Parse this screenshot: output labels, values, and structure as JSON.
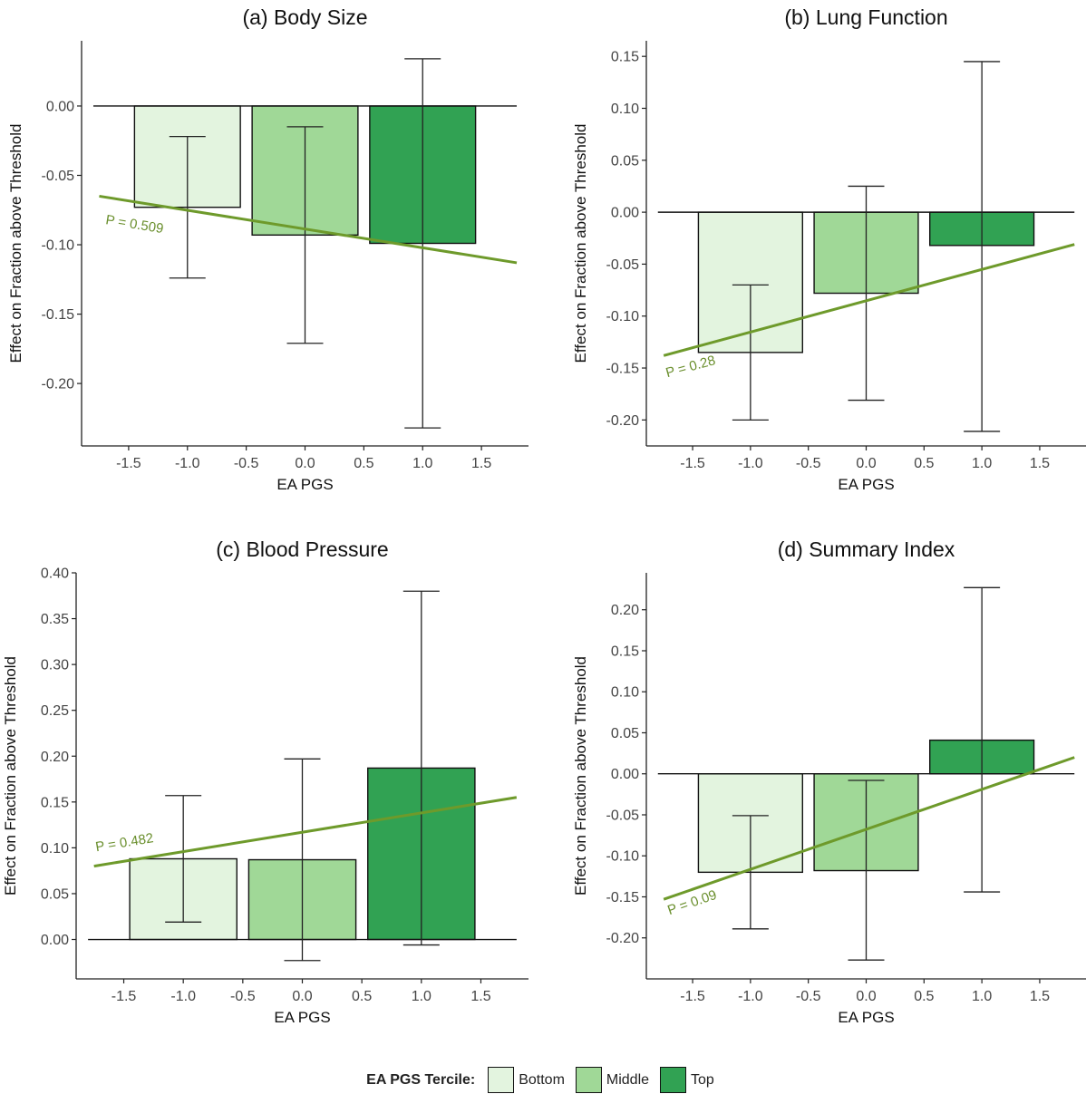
{
  "legend": {
    "title": "EA PGS Tercile:",
    "items": [
      {
        "label": "Bottom",
        "color": "#e3f4df"
      },
      {
        "label": "Middle",
        "color": "#a0d897"
      },
      {
        "label": "Top",
        "color": "#31a253"
      }
    ]
  },
  "colors": {
    "trend_line": "#6e9a2b",
    "p_label": "#6a8f2d",
    "axis": "#222222",
    "error_bar": "#222222"
  },
  "chart_data": [
    {
      "type": "bar",
      "title": "(a) Body Size",
      "xlabel": "EA PGS",
      "ylabel": "Effect on Fraction above Threshold",
      "xlim": [
        -1.9,
        1.9
      ],
      "ylim": [
        -0.245,
        0.047
      ],
      "xticks": [
        -1.5,
        -1.0,
        -0.5,
        0.0,
        0.5,
        1.0,
        1.5
      ],
      "xtick_labels": [
        "-1.5",
        "-1.0",
        "-0.5",
        "0.0",
        "0.5",
        "1.0",
        "1.5"
      ],
      "yticks": [
        0.0,
        -0.05,
        -0.1,
        -0.15,
        -0.2
      ],
      "ytick_labels": [
        "0.00",
        "-0.05",
        "-0.10",
        "-0.15",
        "-0.20"
      ],
      "bars": [
        {
          "tercile": "Bottom",
          "x": -1.0,
          "value": -0.073,
          "ci": [
            -0.124,
            -0.022
          ]
        },
        {
          "tercile": "Middle",
          "x": 0.0,
          "value": -0.093,
          "ci": [
            -0.171,
            -0.015
          ]
        },
        {
          "tercile": "Top",
          "x": 1.0,
          "value": -0.099,
          "ci": [
            -0.232,
            0.034
          ]
        }
      ],
      "trend": {
        "x": [
          -1.75,
          1.8
        ],
        "y": [
          -0.065,
          -0.113
        ]
      },
      "p_label": "P = 0.509",
      "p_label_at": {
        "x": -1.7,
        "y": -0.085
      }
    },
    {
      "type": "bar",
      "title": "(b) Lung Function",
      "xlabel": "EA PGS",
      "ylabel": "Effect on Fraction above Threshold",
      "xlim": [
        -1.9,
        1.9
      ],
      "ylim": [
        -0.225,
        0.165
      ],
      "xticks": [
        -1.5,
        -1.0,
        -0.5,
        0.0,
        0.5,
        1.0,
        1.5
      ],
      "xtick_labels": [
        "-1.5",
        "-1.0",
        "-0.5",
        "0.0",
        "0.5",
        "1.0",
        "1.5"
      ],
      "yticks": [
        0.15,
        0.1,
        0.05,
        0.0,
        -0.05,
        -0.1,
        -0.15,
        -0.2
      ],
      "ytick_labels": [
        "0.15",
        "0.10",
        "0.05",
        "0.00",
        "-0.05",
        "-0.10",
        "-0.15",
        "-0.20"
      ],
      "bars": [
        {
          "tercile": "Bottom",
          "x": -1.0,
          "value": -0.135,
          "ci": [
            -0.2,
            -0.07
          ]
        },
        {
          "tercile": "Middle",
          "x": 0.0,
          "value": -0.078,
          "ci": [
            -0.181,
            0.025
          ]
        },
        {
          "tercile": "Top",
          "x": 1.0,
          "value": -0.032,
          "ci": [
            -0.211,
            0.145
          ]
        }
      ],
      "trend": {
        "x": [
          -1.75,
          1.8
        ],
        "y": [
          -0.138,
          -0.031
        ]
      },
      "p_label": "P = 0.28",
      "p_label_at": {
        "x": -1.72,
        "y": -0.159
      }
    },
    {
      "type": "bar",
      "title": "(c) Blood Pressure",
      "xlabel": "EA PGS",
      "ylabel": "Effect on Fraction above Threshold",
      "xlim": [
        -1.9,
        1.9
      ],
      "ylim": [
        -0.043,
        0.4
      ],
      "xticks": [
        -1.5,
        -1.0,
        -0.5,
        0.0,
        0.5,
        1.0,
        1.5
      ],
      "xtick_labels": [
        "-1.5",
        "-1.0",
        "-0.5",
        "0.0",
        "0.5",
        "1.0",
        "1.5"
      ],
      "yticks": [
        0.4,
        0.35,
        0.3,
        0.25,
        0.2,
        0.15,
        0.1,
        0.05,
        0.0
      ],
      "ytick_labels": [
        "0.40",
        "0.35",
        "0.30",
        "0.25",
        "0.20",
        "0.15",
        "0.10",
        "0.05",
        "0.00"
      ],
      "bars": [
        {
          "tercile": "Bottom",
          "x": -1.0,
          "value": 0.088,
          "ci": [
            0.019,
            0.157
          ]
        },
        {
          "tercile": "Middle",
          "x": 0.0,
          "value": 0.087,
          "ci": [
            -0.023,
            0.197
          ]
        },
        {
          "tercile": "Top",
          "x": 1.0,
          "value": 0.187,
          "ci": [
            -0.006,
            0.38
          ]
        }
      ],
      "trend": {
        "x": [
          -1.75,
          1.8
        ],
        "y": [
          0.08,
          0.155
        ]
      },
      "p_label": "P = 0.482",
      "p_label_at": {
        "x": -1.73,
        "y": 0.096
      }
    },
    {
      "type": "bar",
      "title": "(d) Summary Index",
      "xlabel": "EA PGS",
      "ylabel": "Effect on Fraction above Threshold",
      "xlim": [
        -1.9,
        1.9
      ],
      "ylim": [
        -0.25,
        0.245
      ],
      "xticks": [
        -1.5,
        -1.0,
        -0.5,
        0.0,
        0.5,
        1.0,
        1.5
      ],
      "xtick_labels": [
        "-1.5",
        "-1.0",
        "-0.5",
        "0.0",
        "0.5",
        "1.0",
        "1.5"
      ],
      "yticks": [
        0.2,
        0.15,
        0.1,
        0.05,
        0.0,
        -0.05,
        -0.1,
        -0.15,
        -0.2
      ],
      "ytick_labels": [
        "0.20",
        "0.15",
        "0.10",
        "0.05",
        "0.00",
        "-0.05",
        "-0.10",
        "-0.15",
        "-0.20"
      ],
      "bars": [
        {
          "tercile": "Bottom",
          "x": -1.0,
          "value": -0.12,
          "ci": [
            -0.189,
            -0.051
          ]
        },
        {
          "tercile": "Middle",
          "x": 0.0,
          "value": -0.118,
          "ci": [
            -0.227,
            -0.008
          ]
        },
        {
          "tercile": "Top",
          "x": 1.0,
          "value": 0.041,
          "ci": [
            -0.144,
            0.227
          ]
        }
      ],
      "trend": {
        "x": [
          -1.75,
          1.8
        ],
        "y": [
          -0.153,
          0.02
        ]
      },
      "p_label": "P = 0.09",
      "p_label_at": {
        "x": -1.7,
        "y": -0.172
      }
    }
  ]
}
